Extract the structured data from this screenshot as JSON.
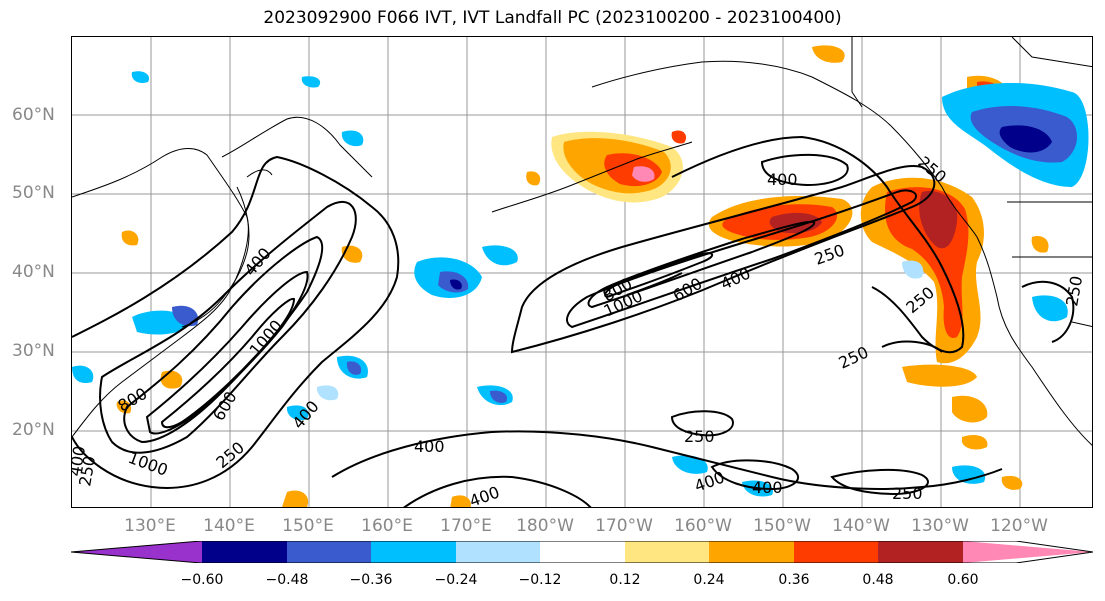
{
  "title": "2023092900 F066 IVT, IVT Landfall PC (2023100200 - 2023100400)",
  "lat_labels": [
    "60°N",
    "50°N",
    "40°N",
    "30°N",
    "20°N"
  ],
  "lon_labels": [
    "130°E",
    "140°E",
    "150°E",
    "160°E",
    "170°E",
    "180°W",
    "170°W",
    "160°W",
    "150°W",
    "140°W",
    "130°W",
    "120°W"
  ],
  "colorbar": {
    "ticks": [
      "−0.60",
      "−0.48",
      "−0.36",
      "−0.24",
      "−0.12",
      "0.12",
      "0.24",
      "0.36",
      "0.48",
      "0.60"
    ],
    "colors": [
      "#9932cc",
      "#00008b",
      "#3a5bcd",
      "#00bfff",
      "#b0e2ff",
      "#ffffff",
      "#ffe680",
      "#ffa500",
      "#ff3c00",
      "#b22222",
      "#ff88b4"
    ]
  },
  "contour_labels": [
    "400",
    "400",
    "1000",
    "800",
    "1000",
    "600",
    "400",
    "250",
    "400",
    "400",
    "800",
    "1000",
    "600",
    "400",
    "250",
    "400",
    "250",
    "250",
    "250",
    "250",
    "250",
    "400",
    "400",
    "250",
    "250"
  ],
  "colors": {
    "contour": "#000000",
    "gridline": "#999999",
    "axis_label": "#888888"
  }
}
